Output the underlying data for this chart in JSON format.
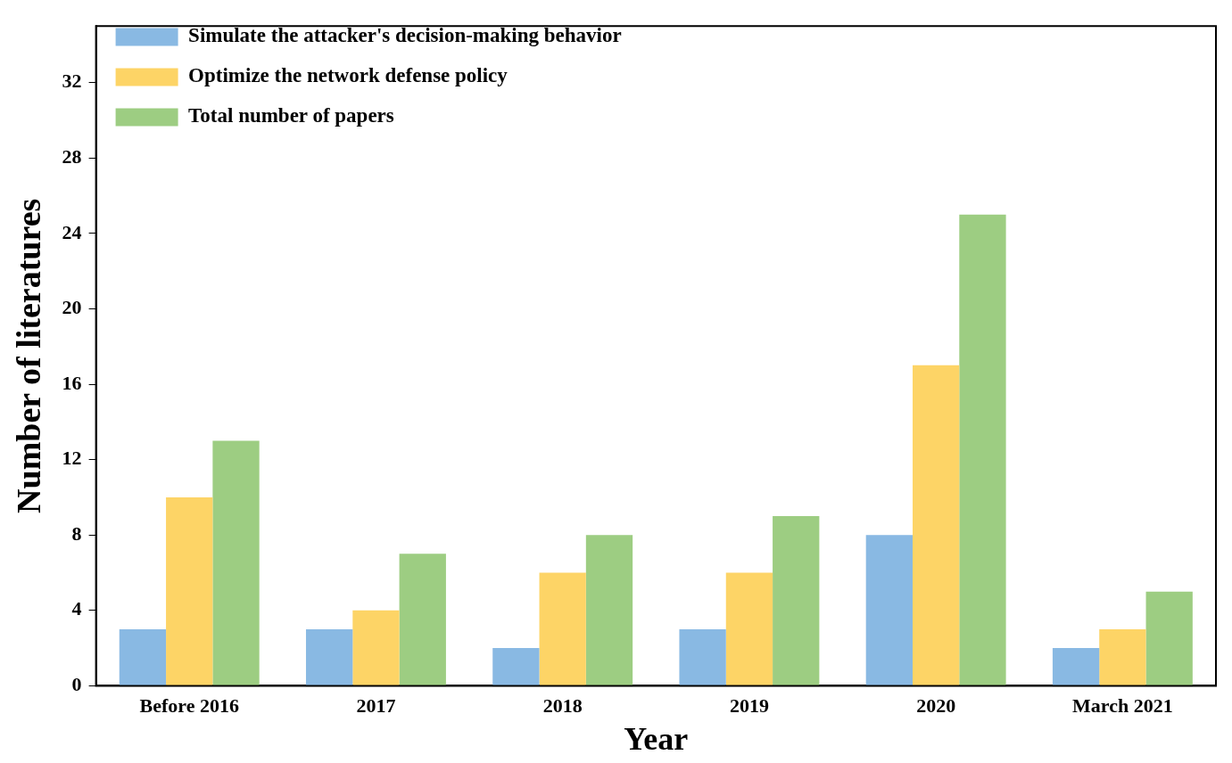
{
  "chart_data": {
    "type": "bar",
    "xlabel": "Year",
    "ylabel": "Number of literatures",
    "categories": [
      "Before 2016",
      "2017",
      "2018",
      "2019",
      "2020",
      "March 2021"
    ],
    "series": [
      {
        "name": "Simulate the attacker's decision-making behavior",
        "color": "#89b9e3",
        "values": [
          3,
          3,
          2,
          3,
          8,
          2
        ]
      },
      {
        "name": "Optimize the network defense policy",
        "color": "#fdd466",
        "values": [
          10,
          4,
          6,
          6,
          17,
          3
        ]
      },
      {
        "name": "Total number of papers",
        "color": "#9dcd82",
        "values": [
          13,
          7,
          8,
          9,
          25,
          5
        ]
      }
    ],
    "ylim": [
      0,
      35
    ],
    "yticks": [
      0,
      4,
      8,
      12,
      16,
      20,
      24,
      28,
      32
    ],
    "grid": false,
    "legend": "top left"
  }
}
